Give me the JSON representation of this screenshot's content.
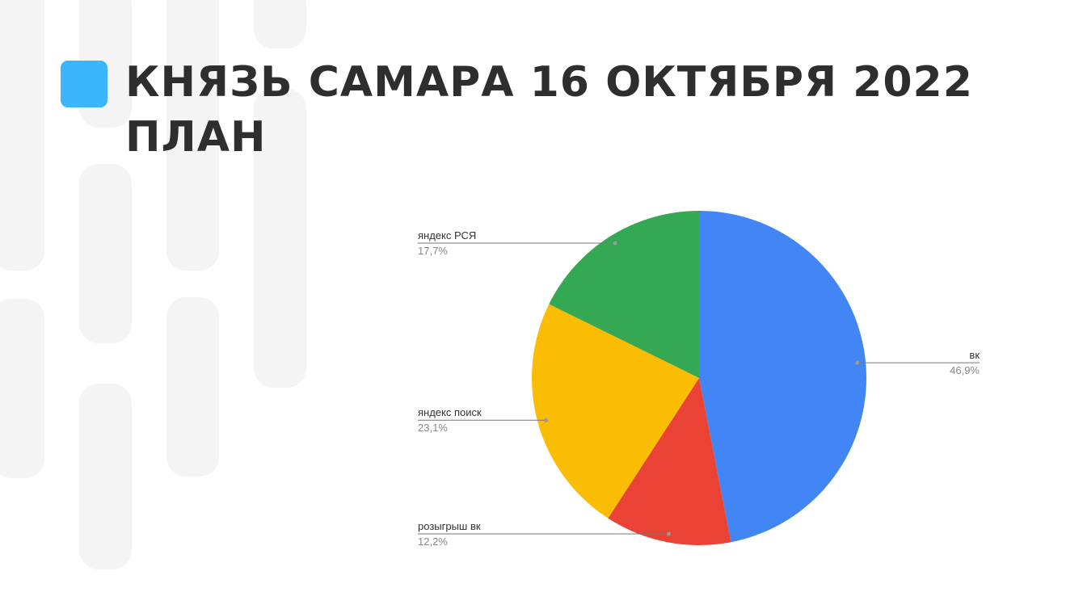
{
  "chart_data": {
    "type": "pie",
    "title": "КНЯЗЬ САМАРА 16 ОКТЯБРЯ 2022 ПЛАН",
    "categories": [
      "вк",
      "розыгрыш вк",
      "яндекс поиск",
      "яндекс РСЯ"
    ],
    "values": [
      46.9,
      12.2,
      23.1,
      17.7
    ],
    "value_labels": [
      "46,9%",
      "12,2%",
      "23,1%",
      "17,7%"
    ],
    "colors": [
      "#4285f4",
      "#ea4335",
      "#fbbc04",
      "#34a853"
    ]
  }
}
